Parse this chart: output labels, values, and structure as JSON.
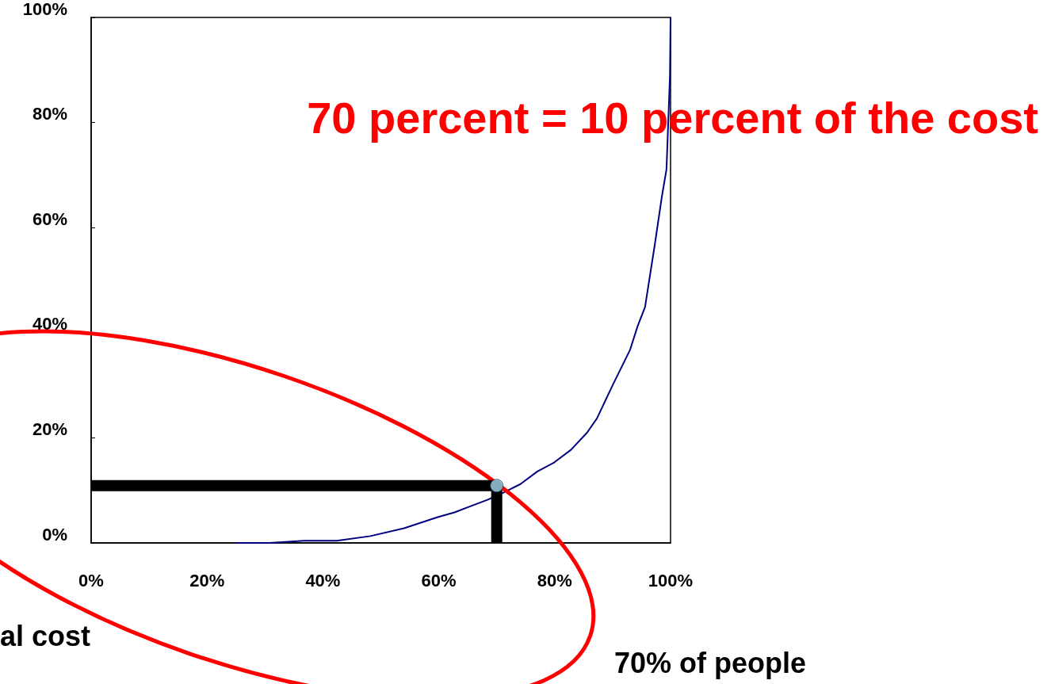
{
  "chart_data": {
    "type": "line",
    "xlim": [
      0,
      100
    ],
    "ylim": [
      0,
      100
    ],
    "xticks": [
      {
        "value": 0,
        "label": "0%"
      },
      {
        "value": 20,
        "label": "20%"
      },
      {
        "value": 40,
        "label": "40%"
      },
      {
        "value": 60,
        "label": "60%"
      },
      {
        "value": 80,
        "label": "80%"
      },
      {
        "value": 100,
        "label": "100%"
      }
    ],
    "yticks": [
      {
        "value": 0,
        "label": "0%"
      },
      {
        "value": 20,
        "label": "20%"
      },
      {
        "value": 40,
        "label": "40%"
      },
      {
        "value": 60,
        "label": "60%"
      },
      {
        "value": 80,
        "label": "80%"
      },
      {
        "value": 100,
        "label": "100%"
      }
    ],
    "grid": false,
    "marker": "none",
    "line_style": "solid",
    "series": [
      {
        "color": "#000080",
        "x": [
          25,
          30.8,
          36.7,
          42.4,
          48.2,
          54,
          59.8,
          62.7,
          65.5,
          68.4,
          71.2,
          74.1,
          77,
          79.9,
          82.8,
          85.6,
          87.3,
          90,
          93,
          94.3,
          95.6,
          97.3,
          98.5,
          99.3,
          99.6,
          99.9,
          100
        ],
        "values": [
          0,
          0,
          0.4,
          0.4,
          1.3,
          2.8,
          4.9,
          5.8,
          7,
          8.2,
          9.6,
          11.2,
          13.6,
          15.3,
          17.7,
          21,
          23.7,
          30,
          36.7,
          41.2,
          44.9,
          56.9,
          65.9,
          71.1,
          80,
          89,
          100
        ]
      },
      {
        "color": "#000000",
        "x": [
          0,
          70,
          70
        ],
        "values": [
          10.9,
          10.9,
          0
        ]
      },
      {
        "type": "scatter",
        "marker": "circle",
        "color": "#a6d8ec",
        "x": [
          70
        ],
        "values": [
          10.9
        ]
      }
    ],
    "annotations": [
      "70 percent = 10 percent of the cost",
      "al cost",
      "70% of people"
    ]
  }
}
